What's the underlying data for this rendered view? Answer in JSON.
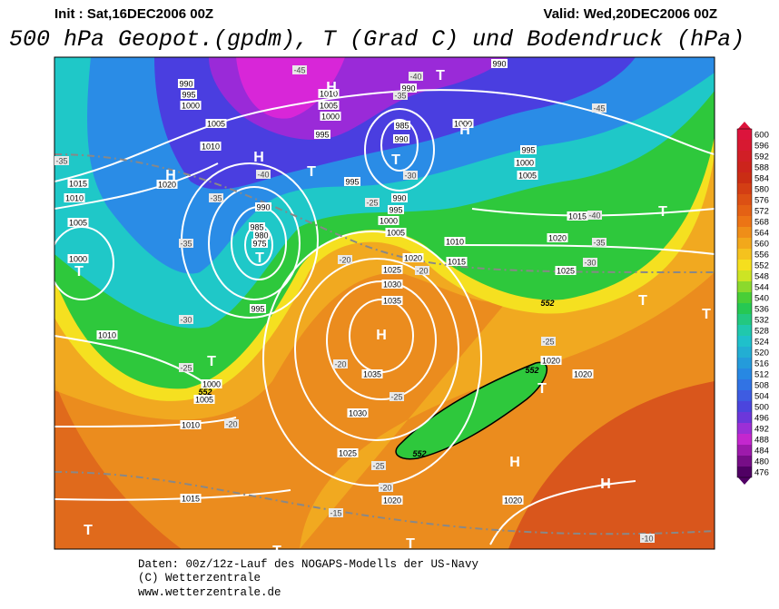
{
  "header": {
    "init": "Init : Sat,16DEC2006 00Z",
    "valid": "Valid: Wed,20DEC2006 00Z",
    "title": "500 hPa Geopot.(gpdm), T (Grad C) und Bodendruck (hPa)"
  },
  "map": {
    "pressure_labels": [
      "990",
      "995",
      "1000",
      "1005",
      "1010",
      "1020",
      "1015",
      "1010",
      "1005",
      "1000",
      "990",
      "985",
      "980",
      "975",
      "995",
      "1010",
      "1000",
      "1005",
      "1010",
      "1015",
      "1020",
      "1025",
      "1030",
      "1035",
      "1035",
      "1030",
      "1025",
      "1020",
      "1015",
      "1010",
      "1005",
      "1000",
      "995",
      "990",
      "995",
      "995",
      "1000",
      "1005",
      "1010",
      "985",
      "990",
      "990",
      "1000",
      "995",
      "1000",
      "1005",
      "1015",
      "1020",
      "1025",
      "1020",
      "1020",
      "1020",
      "990"
    ],
    "temperature_labels": [
      "-45",
      "-40",
      "-35",
      "-30",
      "-40",
      "-35",
      "-35",
      "-30",
      "-25",
      "-20",
      "-25",
      "-20",
      "-20",
      "-20",
      "-25",
      "-25",
      "-20",
      "-15",
      "-10",
      "-45",
      "-40",
      "-35",
      "-30",
      "-25",
      "-35"
    ],
    "symbols": [
      "T",
      "H",
      "H",
      "H",
      "T",
      "T",
      "H",
      "T",
      "T",
      "T",
      "H",
      "T",
      "T",
      "T",
      "T",
      "H",
      "H",
      "T",
      "T",
      "T"
    ],
    "contour_labels": [
      "552",
      "552",
      "552",
      "552"
    ]
  },
  "colorbar": {
    "labels": [
      600,
      596,
      592,
      588,
      584,
      580,
      576,
      572,
      568,
      564,
      560,
      556,
      552,
      548,
      544,
      540,
      536,
      532,
      528,
      524,
      520,
      516,
      512,
      508,
      504,
      500,
      496,
      492,
      488,
      484,
      480,
      476
    ]
  },
  "footer": {
    "line1": "Daten: 00z/12z-Lauf des NOGAPS-Modells der US-Navy",
    "line2": "(C) Wetterzentrale",
    "line3": "www.wetterzentrale.de"
  }
}
